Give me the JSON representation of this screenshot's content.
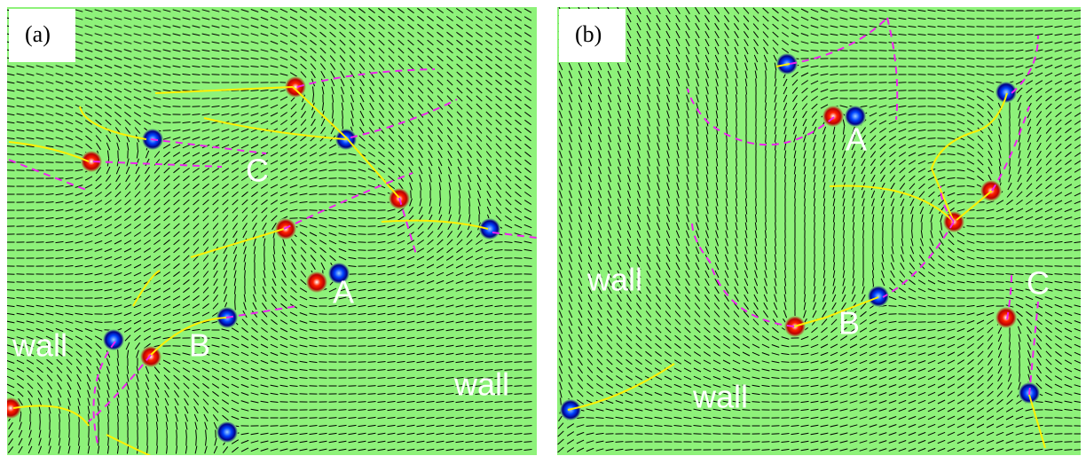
{
  "panels": [
    {
      "label": "(a)",
      "annotations": [
        "C",
        "A",
        "B",
        "wall",
        "wall"
      ]
    },
    {
      "label": "(b)",
      "annotations": [
        "A",
        "B",
        "C",
        "wall",
        "wall"
      ]
    }
  ]
}
